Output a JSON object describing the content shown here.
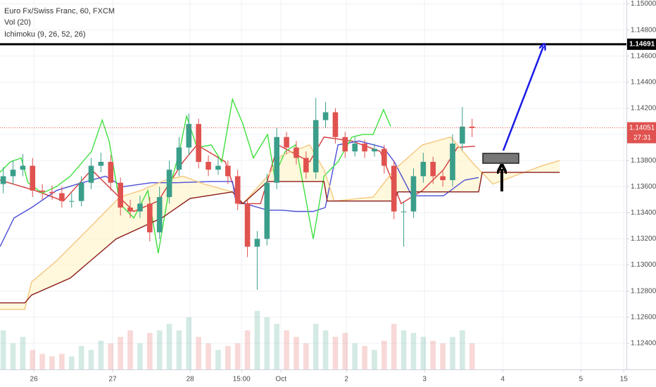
{
  "chart_data": {
    "type": "candlestick",
    "title": "Euro Fx/Swiss Franc, 60, FXCM",
    "indicators": [
      "Vol (20)",
      "Ichimoku (9, 26, 52, 26)"
    ],
    "x": [
      1,
      4,
      7,
      10,
      13,
      16,
      19,
      22,
      25,
      28,
      31,
      34,
      37,
      40,
      43,
      46,
      49,
      52,
      55,
      58,
      61,
      64,
      67,
      70,
      73,
      76,
      79,
      82,
      85,
      88,
      91,
      94,
      97,
      100,
      103,
      106,
      109,
      112,
      115,
      118,
      121,
      124,
      127,
      130,
      133,
      136,
      139,
      142,
      145
    ],
    "open": [
      1.1362,
      1.1368,
      1.1373,
      1.1376,
      1.1357,
      1.1356,
      1.1355,
      1.1349,
      1.1349,
      1.1363,
      1.1376,
      1.1379,
      1.1363,
      1.1344,
      1.1341,
      1.1347,
      1.1325,
      1.1352,
      1.1373,
      1.139,
      1.1408,
      1.1379,
      1.1373,
      1.1376,
      1.1368,
      1.1347,
      1.1314,
      1.132,
      1.1363,
      1.1398,
      1.139,
      1.1382,
      1.1371,
      1.1411,
      1.1417,
      1.1398,
      1.1387,
      1.1393,
      1.1387,
      1.1389,
      1.1376,
      1.1341,
      1.1341,
      1.1368,
      1.1379,
      1.1368,
      1.1365,
      1.1393,
      1.1406
    ],
    "high": [
      1.1375,
      1.138,
      1.1385,
      1.1382,
      1.1362,
      1.1361,
      1.136,
      1.1355,
      1.1368,
      1.1382,
      1.1386,
      1.1384,
      1.1367,
      1.135,
      1.1353,
      1.1352,
      1.136,
      1.138,
      1.1398,
      1.1416,
      1.1412,
      1.1384,
      1.1382,
      1.138,
      1.1373,
      1.135,
      1.1326,
      1.137,
      1.1405,
      1.1402,
      1.1395,
      1.1387,
      1.1428,
      1.1425,
      1.142,
      1.1402,
      1.1398,
      1.1396,
      1.1393,
      1.1392,
      1.138,
      1.1348,
      1.1374,
      1.1386,
      1.1383,
      1.1372,
      1.14,
      1.1421,
      1.1412
    ],
    "low": [
      1.1355,
      1.1362,
      1.1368,
      1.1352,
      1.135,
      1.135,
      1.1344,
      1.1344,
      1.1345,
      1.1358,
      1.1371,
      1.1357,
      1.1338,
      1.1336,
      1.1336,
      1.1318,
      1.132,
      1.1347,
      1.1368,
      1.1384,
      1.1374,
      1.1368,
      1.1369,
      1.1362,
      1.1342,
      1.1306,
      1.1281,
      1.1315,
      1.1358,
      1.1385,
      1.1377,
      1.1366,
      1.1366,
      1.1405,
      1.1393,
      1.1382,
      1.1383,
      1.1382,
      1.1383,
      1.137,
      1.1335,
      1.1314,
      1.1336,
      1.1363,
      1.1362,
      1.136,
      1.136,
      1.1388,
      1.1398
    ],
    "close": [
      1.1368,
      1.1373,
      1.1376,
      1.1357,
      1.1356,
      1.1355,
      1.1349,
      1.1349,
      1.1363,
      1.1376,
      1.1379,
      1.1363,
      1.1344,
      1.1341,
      1.1347,
      1.1325,
      1.1352,
      1.1373,
      1.139,
      1.1408,
      1.1379,
      1.1373,
      1.1376,
      1.1368,
      1.1347,
      1.1314,
      1.132,
      1.1363,
      1.1398,
      1.139,
      1.1382,
      1.1371,
      1.1411,
      1.1417,
      1.1398,
      1.1387,
      1.1393,
      1.1387,
      1.1389,
      1.1376,
      1.1341,
      1.1341,
      1.1368,
      1.1379,
      1.1368,
      1.1365,
      1.1393,
      1.1406,
      1.1405
    ],
    "volume": [
      30,
      20,
      25,
      15,
      12,
      10,
      12,
      10,
      18,
      15,
      22,
      20,
      25,
      30,
      20,
      28,
      30,
      35,
      30,
      40,
      25,
      20,
      15,
      18,
      20,
      30,
      45,
      40,
      35,
      30,
      25,
      20,
      35,
      30,
      25,
      28,
      20,
      18,
      15,
      22,
      35,
      30,
      28,
      25,
      22,
      20,
      25,
      30,
      20
    ],
    "volume_ylim": [
      0,
      100
    ],
    "up_color": "#3a9e8a",
    "down_color": "#e0524f",
    "lines": [
      {
        "color": "#d33b3b",
        "x": [
          0,
          10.8,
          19.5,
          28.1,
          41.1,
          48.6,
          56.2,
          60.5,
          69.2,
          73.5,
          80,
          85.4,
          95.1,
          99.5,
          108.1,
          116.8,
          123.2,
          129.7,
          136.2,
          140.5,
          145.9
        ],
        "values": [
          1.1365,
          1.1357,
          1.1349,
          1.1373,
          1.1341,
          1.1349,
          1.1379,
          1.1392,
          1.1379,
          1.1347,
          1.1347,
          1.1392,
          1.1379,
          1.1398,
          1.1395,
          1.1387,
          1.1347,
          1.1357,
          1.1373,
          1.139,
          1.1391
        ]
      },
      {
        "color": "#4c4fd6",
        "x": [
          0,
          4.3,
          9.7,
          17.3,
          23.8,
          32.4,
          37.8,
          46.5,
          54.1,
          64.9,
          71.4,
          72.4,
          82.2,
          86.5,
          90.8,
          96.2,
          99.9,
          103.8,
          110.3,
          117.8,
          121.1,
          126.5,
          136.2,
          142.7,
          147
        ],
        "values": [
          1.1314,
          1.1336,
          1.1344,
          1.1357,
          1.1362,
          1.1368,
          1.136,
          1.1363,
          1.1363,
          1.1364,
          1.1364,
          1.1349,
          1.1342,
          1.1342,
          1.1341,
          1.1341,
          1.1344,
          1.1392,
          1.1395,
          1.139,
          1.1379,
          1.1353,
          1.1353,
          1.1365,
          1.1367
        ]
      },
      {
        "color": "#3ee03e",
        "x": [
          0,
          3.2,
          6.5,
          8.6,
          13,
          17.3,
          21.6,
          28.1,
          31.4,
          33.5,
          36.8,
          41.1,
          45.4,
          48.6,
          51.9,
          55.1,
          57.3,
          60.5,
          64.9,
          68.1,
          71.4,
          74.6,
          77.8,
          82.2,
          84.3,
          87.6,
          90.8,
          93,
          96.2,
          99.5,
          103.8,
          108.1,
          111.4,
          114.6,
          117.8,
          120
        ],
        "values": [
          1.1371,
          1.1379,
          1.1382,
          1.1363,
          1.1355,
          1.136,
          1.1368,
          1.1387,
          1.1411,
          1.1395,
          1.1347,
          1.1336,
          1.1357,
          1.1309,
          1.1357,
          1.1387,
          1.1414,
          1.139,
          1.1392,
          1.1379,
          1.1427,
          1.1408,
          1.1382,
          1.14,
          1.1368,
          1.1387,
          1.1392,
          1.1363,
          1.132,
          1.1368,
          1.1379,
          1.1398,
          1.14,
          1.14,
          1.1419,
          1.1406
        ]
      },
      {
        "color": "#f4c77e",
        "x": [
          0,
          7.6,
          9.7,
          17.3,
          28.1,
          36.8,
          43.2,
          50.8,
          56.2,
          62.7,
          71.4,
          74.6,
          82.2,
          86.5,
          95.1,
          99.5,
          102.7,
          114.6,
          121.1,
          129.7,
          138.4,
          144.9,
          151.4,
          157.8,
          166.5,
          171.9
        ],
        "values": [
          1.1266,
          1.1266,
          1.1287,
          1.1303,
          1.133,
          1.1352,
          1.1357,
          1.1365,
          1.1368,
          1.1362,
          1.1356,
          1.1347,
          1.1368,
          1.1384,
          1.1392,
          1.1373,
          1.1349,
          1.1352,
          1.1373,
          1.1392,
          1.1398,
          1.1379,
          1.1362,
          1.1368,
          1.1376,
          1.138
        ]
      },
      {
        "color": "#8b1a1a",
        "x": [
          0,
          7.6,
          9.7,
          21.6,
          35.7,
          49.7,
          58.4,
          71.4,
          74.6,
          82.2,
          99.5,
          100.5,
          121.1,
          122.2,
          147,
          148.1,
          171.9
        ],
        "values": [
          1.1271,
          1.1271,
          1.1277,
          1.129,
          1.132,
          1.1336,
          1.1351,
          1.1356,
          1.1347,
          1.1364,
          1.1364,
          1.1349,
          1.1349,
          1.1356,
          1.1356,
          1.1371,
          1.1371
        ]
      }
    ],
    "cloud_color": "#fff3c4",
    "xlim": [
      0,
      192.4
    ],
    "xticks": [
      {
        "value": 10.4,
        "label": "26"
      },
      {
        "value": 34.6,
        "label": "27"
      },
      {
        "value": 58.4,
        "label": "28"
      },
      {
        "value": 74.2,
        "label": "15:00"
      },
      {
        "value": 86.3,
        "label": "Oct"
      },
      {
        "value": 106.4,
        "label": "2"
      },
      {
        "value": 130.4,
        "label": "3"
      },
      {
        "value": 154.4,
        "label": "4"
      },
      {
        "value": 178.4,
        "label": "5"
      },
      {
        "value": 191.6,
        "label": "15"
      }
    ],
    "ylim": [
      1.122,
      1.1503
    ],
    "yticks": [
      {
        "value": 1.124,
        "label": "1.12400"
      },
      {
        "value": 1.126,
        "label": "1.12600"
      },
      {
        "value": 1.128,
        "label": "1.12800"
      },
      {
        "value": 1.13,
        "label": "1.13000"
      },
      {
        "value": 1.132,
        "label": "1.13200"
      },
      {
        "value": 1.134,
        "label": "1.13400"
      },
      {
        "value": 1.136,
        "label": "1.13600"
      },
      {
        "value": 1.138,
        "label": "1.13800"
      },
      {
        "value": 1.14,
        "label": "1.14000"
      },
      {
        "value": 1.142,
        "label": "1.14200"
      },
      {
        "value": 1.144,
        "label": "1.14400"
      },
      {
        "value": 1.146,
        "label": "1.14600"
      },
      {
        "value": 1.148,
        "label": "1.14800"
      },
      {
        "value": 1.15,
        "label": "1.15000"
      }
    ],
    "grid": true,
    "price_line": 1.14691,
    "last_price": 1.14051,
    "countdown": "27:31"
  }
}
